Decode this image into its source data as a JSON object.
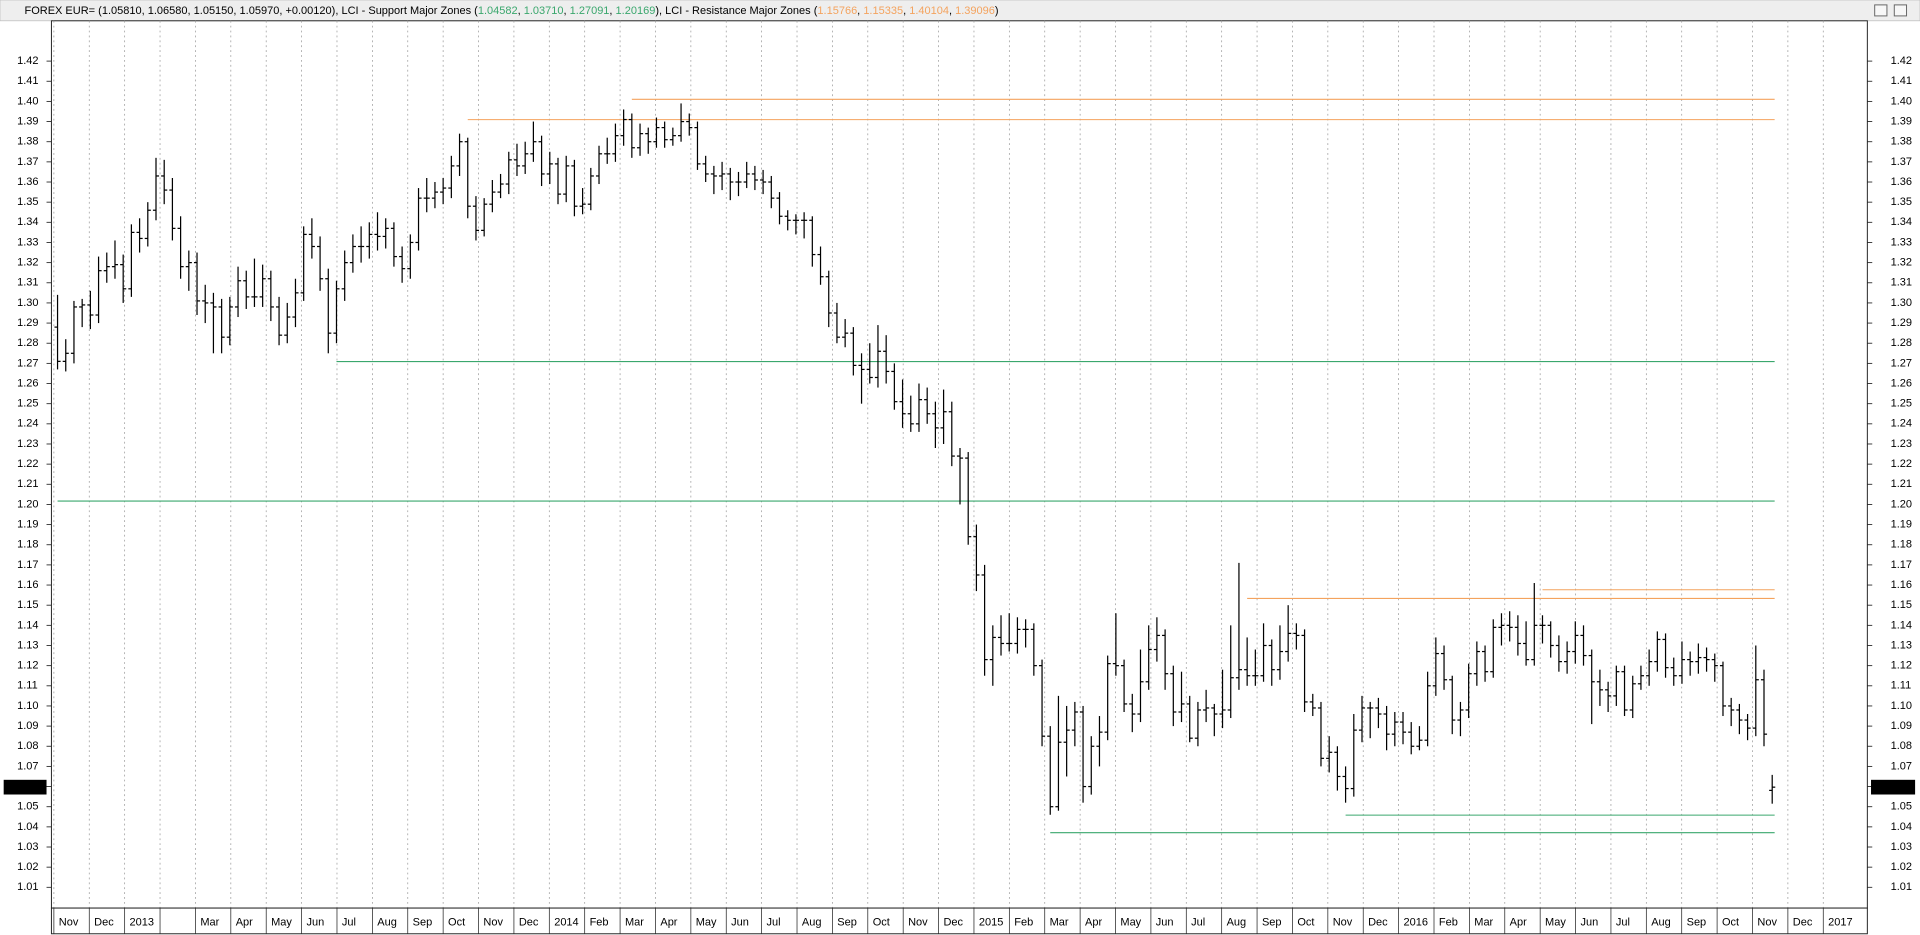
{
  "chart_data": {
    "type": "ohlc",
    "quote": {
      "name": "FOREX EUR=",
      "values": [
        1.0581,
        1.0658,
        1.0515,
        1.0597,
        0.0012
      ],
      "value_labels": [
        "1.05810",
        "1.06580",
        "1.05150",
        "1.05970",
        "+0.00120"
      ]
    },
    "support": {
      "name": "LCI - Support Major Zones",
      "color": "#3aa76d",
      "values": [
        1.04582,
        1.0371,
        1.27091,
        1.20169
      ],
      "value_labels": [
        "1.04582",
        "1.03710",
        "1.27091",
        "1.20169"
      ],
      "start_bar": [
        157,
        121,
        34,
        0
      ]
    },
    "resistance": {
      "name": "LCI - Resistance Major Zones",
      "color": "#f4a35e",
      "values": [
        1.15766,
        1.15335,
        1.40104,
        1.39096
      ],
      "start_bar": [
        181,
        145,
        70,
        50
      ]
    },
    "color": "#000000",
    "ylim": [
      1.0,
      1.44
    ],
    "yticks": [
      1.01,
      1.02,
      1.03,
      1.04,
      1.05,
      1.06,
      1.07,
      1.08,
      1.09,
      {
        "value": 1.1,
        "label": "1.10"
      },
      1.11,
      1.12,
      1.13,
      1.14,
      1.15,
      1.16,
      1.17,
      1.18,
      1.19,
      {
        "value": 1.2,
        "label": "1.20"
      },
      1.21,
      1.22,
      1.23,
      1.24,
      1.25,
      1.26,
      1.27,
      1.28,
      1.29,
      {
        "value": 1.3,
        "label": "1.30"
      },
      1.31,
      1.32,
      1.33,
      1.34,
      1.35,
      1.36,
      1.37,
      1.38,
      1.39,
      {
        "value": 1.4,
        "label": "1.40"
      },
      1.41,
      1.42
    ],
    "categories": [
      "Nov",
      "Dec",
      "2013",
      null,
      "Mar",
      "Apr",
      "May",
      "Jun",
      "Jul",
      "Aug",
      "Sep",
      "Oct",
      "Nov",
      "Dec",
      "2014",
      "Feb",
      "Mar",
      "Apr",
      "May",
      "Jun",
      "Jul",
      "Aug",
      "Sep",
      "Oct",
      "Nov",
      "Dec",
      "2015",
      "Feb",
      "Mar",
      "Apr",
      "May",
      "Jun",
      "Jul",
      "Aug",
      "Sep",
      "Oct",
      "Nov",
      "Dec",
      "2016",
      "Feb",
      "Mar",
      "Apr",
      "May",
      "Jun",
      "Jul",
      "Aug",
      "Sep",
      "Oct",
      "Nov",
      "Dec",
      "2017"
    ],
    "ohlc": [
      [
        1.288,
        1.304,
        1.267,
        1.271
      ],
      [
        1.271,
        1.282,
        1.266,
        1.275
      ],
      [
        1.275,
        1.301,
        1.27,
        1.298
      ],
      [
        1.298,
        1.302,
        1.288,
        1.299
      ],
      [
        1.299,
        1.306,
        1.287,
        1.294
      ],
      [
        1.294,
        1.323,
        1.29,
        1.316
      ],
      [
        1.316,
        1.325,
        1.31,
        1.318
      ],
      [
        1.318,
        1.331,
        1.312,
        1.319
      ],
      [
        1.319,
        1.324,
        1.3,
        1.307
      ],
      [
        1.307,
        1.339,
        1.303,
        1.335
      ],
      [
        1.335,
        1.342,
        1.325,
        1.332
      ],
      [
        1.332,
        1.35,
        1.328,
        1.346
      ],
      [
        1.346,
        1.372,
        1.341,
        1.363
      ],
      [
        1.363,
        1.371,
        1.349,
        1.356
      ],
      [
        1.356,
        1.362,
        1.331,
        1.337
      ],
      [
        1.337,
        1.343,
        1.312,
        1.318
      ],
      [
        1.318,
        1.326,
        1.306,
        1.32
      ],
      [
        1.32,
        1.325,
        1.294,
        1.301
      ],
      [
        1.301,
        1.309,
        1.29,
        1.3
      ],
      [
        1.3,
        1.305,
        1.275,
        1.298
      ],
      [
        1.298,
        1.302,
        1.275,
        1.283
      ],
      [
        1.283,
        1.303,
        1.279,
        1.298
      ],
      [
        1.298,
        1.318,
        1.293,
        1.311
      ],
      [
        1.311,
        1.316,
        1.297,
        1.303
      ],
      [
        1.303,
        1.322,
        1.298,
        1.303
      ],
      [
        1.303,
        1.319,
        1.298,
        1.312
      ],
      [
        1.312,
        1.316,
        1.291,
        1.298
      ],
      [
        1.298,
        1.303,
        1.279,
        1.284
      ],
      [
        1.284,
        1.3,
        1.28,
        1.293
      ],
      [
        1.293,
        1.312,
        1.288,
        1.305
      ],
      [
        1.305,
        1.338,
        1.301,
        1.334
      ],
      [
        1.334,
        1.342,
        1.322,
        1.328
      ],
      [
        1.328,
        1.333,
        1.306,
        1.312
      ],
      [
        1.312,
        1.317,
        1.275,
        1.285
      ],
      [
        1.285,
        1.311,
        1.28,
        1.307
      ],
      [
        1.307,
        1.326,
        1.301,
        1.32
      ],
      [
        1.32,
        1.334,
        1.315,
        1.328
      ],
      [
        1.328,
        1.338,
        1.32,
        1.328
      ],
      [
        1.328,
        1.34,
        1.322,
        1.334
      ],
      [
        1.334,
        1.345,
        1.326,
        1.333
      ],
      [
        1.333,
        1.342,
        1.327,
        1.337
      ],
      [
        1.337,
        1.34,
        1.318,
        1.323
      ],
      [
        1.323,
        1.328,
        1.31,
        1.317
      ],
      [
        1.317,
        1.334,
        1.312,
        1.33
      ],
      [
        1.33,
        1.357,
        1.326,
        1.352
      ],
      [
        1.352,
        1.362,
        1.345,
        1.352
      ],
      [
        1.352,
        1.36,
        1.347,
        1.355
      ],
      [
        1.355,
        1.362,
        1.349,
        1.357
      ],
      [
        1.357,
        1.373,
        1.352,
        1.368
      ],
      [
        1.368,
        1.384,
        1.363,
        1.38
      ],
      [
        1.38,
        1.382,
        1.342,
        1.348
      ],
      [
        1.348,
        1.353,
        1.331,
        1.336
      ],
      [
        1.336,
        1.352,
        1.333,
        1.349
      ],
      [
        1.349,
        1.361,
        1.345,
        1.355
      ],
      [
        1.355,
        1.364,
        1.352,
        1.359
      ],
      [
        1.359,
        1.375,
        1.354,
        1.371
      ],
      [
        1.371,
        1.379,
        1.363,
        1.368
      ],
      [
        1.368,
        1.38,
        1.364,
        1.374
      ],
      [
        1.374,
        1.39,
        1.37,
        1.38
      ],
      [
        1.38,
        1.383,
        1.358,
        1.364
      ],
      [
        1.364,
        1.375,
        1.359,
        1.369
      ],
      [
        1.369,
        1.372,
        1.349,
        1.354
      ],
      [
        1.354,
        1.373,
        1.35,
        1.368
      ],
      [
        1.368,
        1.371,
        1.343,
        1.348
      ],
      [
        1.348,
        1.357,
        1.344,
        1.349
      ],
      [
        1.349,
        1.367,
        1.346,
        1.363
      ],
      [
        1.363,
        1.378,
        1.359,
        1.374
      ],
      [
        1.374,
        1.382,
        1.369,
        1.374
      ],
      [
        1.374,
        1.389,
        1.37,
        1.383
      ],
      [
        1.383,
        1.396,
        1.378,
        1.391
      ],
      [
        1.391,
        1.394,
        1.372,
        1.377
      ],
      [
        1.377,
        1.389,
        1.373,
        1.384
      ],
      [
        1.384,
        1.387,
        1.374,
        1.38
      ],
      [
        1.38,
        1.392,
        1.377,
        1.387
      ],
      [
        1.387,
        1.39,
        1.377,
        1.381
      ],
      [
        1.381,
        1.387,
        1.378,
        1.383
      ],
      [
        1.383,
        1.399,
        1.38,
        1.39
      ],
      [
        1.39,
        1.394,
        1.383,
        1.387
      ],
      [
        1.387,
        1.39,
        1.366,
        1.369
      ],
      [
        1.369,
        1.373,
        1.36,
        1.364
      ],
      [
        1.364,
        1.368,
        1.354,
        1.363
      ],
      [
        1.363,
        1.37,
        1.356,
        1.364
      ],
      [
        1.364,
        1.367,
        1.351,
        1.36
      ],
      [
        1.36,
        1.365,
        1.353,
        1.36
      ],
      [
        1.36,
        1.37,
        1.357,
        1.364
      ],
      [
        1.364,
        1.368,
        1.356,
        1.361
      ],
      [
        1.361,
        1.366,
        1.354,
        1.36
      ],
      [
        1.36,
        1.363,
        1.347,
        1.352
      ],
      [
        1.352,
        1.355,
        1.339,
        1.343
      ],
      [
        1.343,
        1.346,
        1.336,
        1.341
      ],
      [
        1.341,
        1.344,
        1.334,
        1.341
      ],
      [
        1.341,
        1.345,
        1.332,
        1.341
      ],
      [
        1.341,
        1.343,
        1.318,
        1.324
      ],
      [
        1.324,
        1.328,
        1.309,
        1.313
      ],
      [
        1.313,
        1.316,
        1.288,
        1.295
      ],
      [
        1.295,
        1.3,
        1.28,
        1.283
      ],
      [
        1.283,
        1.292,
        1.278,
        1.285
      ],
      [
        1.285,
        1.288,
        1.264,
        1.269
      ],
      [
        1.269,
        1.275,
        1.25,
        1.267
      ],
      [
        1.267,
        1.28,
        1.26,
        1.263
      ],
      [
        1.263,
        1.289,
        1.258,
        1.276
      ],
      [
        1.276,
        1.284,
        1.26,
        1.266
      ],
      [
        1.266,
        1.27,
        1.247,
        1.251
      ],
      [
        1.251,
        1.262,
        1.238,
        1.245
      ],
      [
        1.245,
        1.254,
        1.236,
        1.24
      ],
      [
        1.24,
        1.26,
        1.236,
        1.252
      ],
      [
        1.252,
        1.258,
        1.24,
        1.245
      ],
      [
        1.245,
        1.251,
        1.228,
        1.238
      ],
      [
        1.238,
        1.257,
        1.23,
        1.246
      ],
      [
        1.246,
        1.251,
        1.219,
        1.224
      ],
      [
        1.224,
        1.228,
        1.2,
        1.223
      ],
      [
        1.223,
        1.226,
        1.18,
        1.184
      ],
      [
        1.184,
        1.19,
        1.157,
        1.165
      ],
      [
        1.165,
        1.17,
        1.115,
        1.123
      ],
      [
        1.123,
        1.14,
        1.11,
        1.134
      ],
      [
        1.134,
        1.145,
        1.125,
        1.131
      ],
      [
        1.131,
        1.146,
        1.127,
        1.131
      ],
      [
        1.131,
        1.144,
        1.126,
        1.138
      ],
      [
        1.138,
        1.143,
        1.129,
        1.138
      ],
      [
        1.138,
        1.141,
        1.115,
        1.12
      ],
      [
        1.12,
        1.123,
        1.08,
        1.085
      ],
      [
        1.085,
        1.09,
        1.046,
        1.05
      ],
      [
        1.05,
        1.105,
        1.048,
        1.082
      ],
      [
        1.082,
        1.1,
        1.065,
        1.088
      ],
      [
        1.088,
        1.102,
        1.08,
        1.097
      ],
      [
        1.097,
        1.1,
        1.052,
        1.06
      ],
      [
        1.06,
        1.085,
        1.056,
        1.08
      ],
      [
        1.08,
        1.095,
        1.07,
        1.087
      ],
      [
        1.087,
        1.125,
        1.083,
        1.121
      ],
      [
        1.121,
        1.146,
        1.115,
        1.12
      ],
      [
        1.12,
        1.123,
        1.097,
        1.101
      ],
      [
        1.101,
        1.106,
        1.087,
        1.096
      ],
      [
        1.096,
        1.128,
        1.092,
        1.112
      ],
      [
        1.112,
        1.14,
        1.108,
        1.128
      ],
      [
        1.128,
        1.144,
        1.122,
        1.135
      ],
      [
        1.135,
        1.138,
        1.108,
        1.116
      ],
      [
        1.116,
        1.12,
        1.09,
        1.097
      ],
      [
        1.097,
        1.117,
        1.092,
        1.101
      ],
      [
        1.101,
        1.105,
        1.082,
        1.084
      ],
      [
        1.084,
        1.102,
        1.08,
        1.098
      ],
      [
        1.098,
        1.108,
        1.092,
        1.099
      ],
      [
        1.099,
        1.101,
        1.085,
        1.096
      ],
      [
        1.096,
        1.118,
        1.089,
        1.098
      ],
      [
        1.098,
        1.14,
        1.094,
        1.114
      ],
      [
        1.114,
        1.171,
        1.108,
        1.118
      ],
      [
        1.118,
        1.134,
        1.11,
        1.115
      ],
      [
        1.115,
        1.128,
        1.11,
        1.115
      ],
      [
        1.115,
        1.141,
        1.112,
        1.13
      ],
      [
        1.13,
        1.133,
        1.11,
        1.118
      ],
      [
        1.118,
        1.14,
        1.113,
        1.127
      ],
      [
        1.127,
        1.15,
        1.122,
        1.136
      ],
      [
        1.136,
        1.141,
        1.128,
        1.135
      ],
      [
        1.135,
        1.138,
        1.097,
        1.102
      ],
      [
        1.102,
        1.106,
        1.095,
        1.099
      ],
      [
        1.099,
        1.102,
        1.07,
        1.074
      ],
      [
        1.074,
        1.085,
        1.067,
        1.077
      ],
      [
        1.077,
        1.08,
        1.058,
        1.065
      ],
      [
        1.065,
        1.07,
        1.052,
        1.059
      ],
      [
        1.059,
        1.096,
        1.055,
        1.088
      ],
      [
        1.088,
        1.105,
        1.082,
        1.099
      ],
      [
        1.099,
        1.102,
        1.084,
        1.099
      ],
      [
        1.099,
        1.104,
        1.089,
        1.096
      ],
      [
        1.096,
        1.1,
        1.078,
        1.086
      ],
      [
        1.086,
        1.097,
        1.08,
        1.092
      ],
      [
        1.092,
        1.097,
        1.081,
        1.087
      ],
      [
        1.087,
        1.092,
        1.076,
        1.08
      ],
      [
        1.08,
        1.09,
        1.078,
        1.083
      ],
      [
        1.083,
        1.117,
        1.08,
        1.11
      ],
      [
        1.11,
        1.134,
        1.105,
        1.126
      ],
      [
        1.126,
        1.13,
        1.108,
        1.113
      ],
      [
        1.113,
        1.115,
        1.086,
        1.093
      ],
      [
        1.093,
        1.102,
        1.085,
        1.098
      ],
      [
        1.098,
        1.121,
        1.094,
        1.116
      ],
      [
        1.116,
        1.132,
        1.11,
        1.127
      ],
      [
        1.127,
        1.13,
        1.112,
        1.117
      ],
      [
        1.117,
        1.143,
        1.114,
        1.139
      ],
      [
        1.139,
        1.146,
        1.13,
        1.14
      ],
      [
        1.14,
        1.147,
        1.132,
        1.139
      ],
      [
        1.139,
        1.145,
        1.125,
        1.131
      ],
      [
        1.131,
        1.142,
        1.12,
        1.123
      ],
      [
        1.123,
        1.161,
        1.12,
        1.14
      ],
      [
        1.14,
        1.145,
        1.131,
        1.14
      ],
      [
        1.14,
        1.142,
        1.124,
        1.13
      ],
      [
        1.13,
        1.135,
        1.117,
        1.122
      ],
      [
        1.122,
        1.132,
        1.116,
        1.127
      ],
      [
        1.127,
        1.142,
        1.121,
        1.135
      ],
      [
        1.135,
        1.14,
        1.12,
        1.125
      ],
      [
        1.125,
        1.128,
        1.091,
        1.112
      ],
      [
        1.112,
        1.118,
        1.1,
        1.108
      ],
      [
        1.108,
        1.112,
        1.097,
        1.105
      ],
      [
        1.105,
        1.12,
        1.1,
        1.117
      ],
      [
        1.117,
        1.12,
        1.095,
        1.098
      ],
      [
        1.098,
        1.115,
        1.094,
        1.111
      ],
      [
        1.111,
        1.12,
        1.108,
        1.115
      ],
      [
        1.115,
        1.128,
        1.11,
        1.122
      ],
      [
        1.122,
        1.137,
        1.117,
        1.133
      ],
      [
        1.133,
        1.136,
        1.114,
        1.119
      ],
      [
        1.119,
        1.124,
        1.11,
        1.115
      ],
      [
        1.115,
        1.132,
        1.111,
        1.123
      ],
      [
        1.123,
        1.127,
        1.115,
        1.122
      ],
      [
        1.122,
        1.131,
        1.116,
        1.124
      ],
      [
        1.124,
        1.129,
        1.117,
        1.123
      ],
      [
        1.123,
        1.126,
        1.112,
        1.12
      ],
      [
        1.12,
        1.122,
        1.095,
        1.1
      ],
      [
        1.1,
        1.104,
        1.09,
        1.098
      ],
      [
        1.098,
        1.101,
        1.086,
        1.093
      ],
      [
        1.093,
        1.096,
        1.083,
        1.089
      ],
      [
        1.089,
        1.13,
        1.085,
        1.113
      ],
      [
        1.113,
        1.118,
        1.08,
        1.086
      ],
      [
        1.0581,
        1.0658,
        1.0515,
        1.0597
      ]
    ]
  }
}
